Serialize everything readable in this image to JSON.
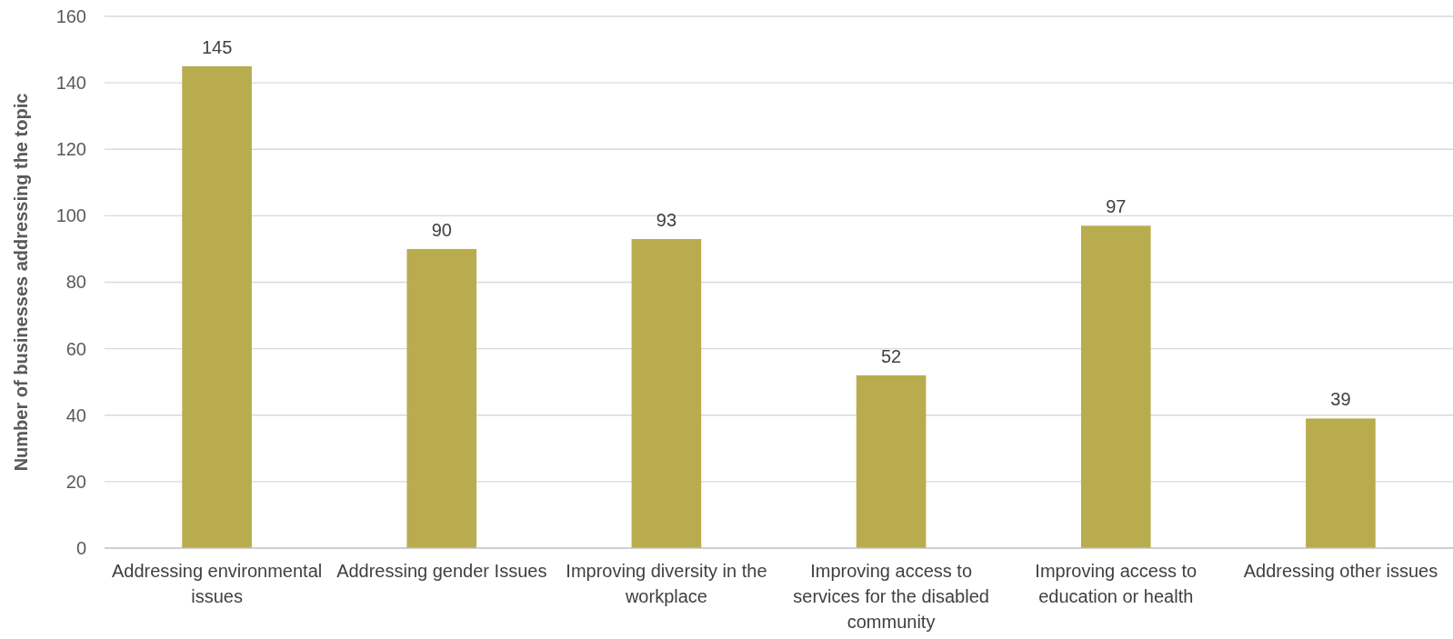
{
  "chart_data": {
    "type": "bar",
    "ylabel": "Number of businesses addressing the topic",
    "categories": [
      "Addressing environmental issues",
      "Addressing gender Issues",
      "Improving diversity in the workplace",
      "Improving access to services for the disabled community",
      "Improving access to education or health",
      "Addressing other issues"
    ],
    "values": [
      145,
      90,
      93,
      52,
      97,
      39
    ],
    "color": "#b8ac4f",
    "ylim": [
      0,
      160
    ],
    "yticks": [
      0,
      20,
      40,
      60,
      80,
      100,
      120,
      140,
      160
    ],
    "grid": "y",
    "data_labels": true
  }
}
